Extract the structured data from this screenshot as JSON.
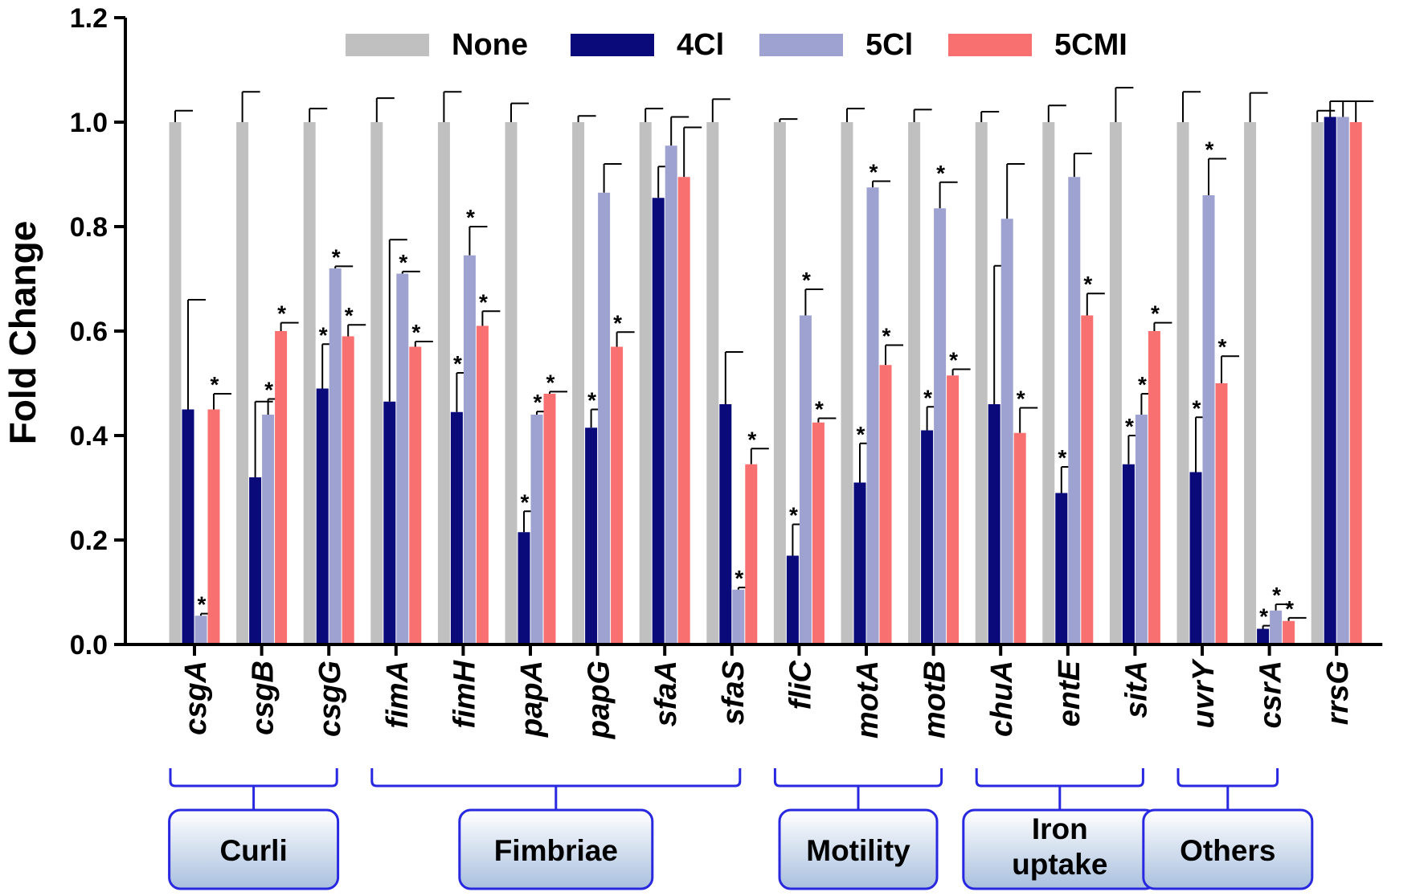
{
  "chart_data": {
    "type": "bar",
    "title": "",
    "xlabel": "",
    "ylabel": "Fold Change",
    "ylim": [
      0,
      1.2
    ],
    "yticks": [
      "0.0",
      "0.2",
      "0.4",
      "0.6",
      "0.8",
      "1.0",
      "1.2"
    ],
    "legend_position": "top",
    "categories": [
      "csgA",
      "csgB",
      "csgG",
      "fimA",
      "fimH",
      "papA",
      "papG",
      "sfaA",
      "sfaS",
      "fliC",
      "motA",
      "motB",
      "chuA",
      "entE",
      "sitA",
      "uvrY",
      "csrA",
      "rrsG"
    ],
    "series": [
      {
        "name": "None",
        "color": "#c0c0c0",
        "values": [
          1.0,
          1.0,
          1.0,
          1.0,
          1.0,
          1.0,
          1.0,
          1.0,
          1.0,
          1.0,
          1.0,
          1.0,
          1.0,
          1.0,
          1.0,
          1.0,
          1.0,
          1.0
        ],
        "errors": [
          0.022,
          0.058,
          0.026,
          0.046,
          0.058,
          0.036,
          0.012,
          0.026,
          0.044,
          0.006,
          0.026,
          0.024,
          0.02,
          0.032,
          0.066,
          0.058,
          0.056,
          0.022
        ],
        "significant": [
          false,
          false,
          false,
          false,
          false,
          false,
          false,
          false,
          false,
          false,
          false,
          false,
          false,
          false,
          false,
          false,
          false,
          false
        ]
      },
      {
        "name": "4Cl",
        "color": "#0a0a7a",
        "values": [
          0.45,
          0.32,
          0.49,
          0.465,
          0.445,
          0.215,
          0.415,
          0.855,
          0.46,
          0.17,
          0.31,
          0.41,
          0.46,
          0.29,
          0.345,
          0.33,
          0.03,
          1.01
        ],
        "errors": [
          0.21,
          0.145,
          0.085,
          0.31,
          0.075,
          0.04,
          0.035,
          0.06,
          0.1,
          0.06,
          0.075,
          0.045,
          0.265,
          0.05,
          0.055,
          0.105,
          0.006,
          0.03
        ],
        "significant": [
          false,
          false,
          true,
          false,
          true,
          true,
          true,
          false,
          false,
          true,
          true,
          true,
          false,
          true,
          true,
          true,
          true,
          false
        ]
      },
      {
        "name": "5Cl",
        "color": "#9ea2d0",
        "values": [
          0.055,
          0.44,
          0.72,
          0.71,
          0.745,
          0.44,
          0.865,
          0.955,
          0.105,
          0.63,
          0.875,
          0.835,
          0.815,
          0.895,
          0.44,
          0.86,
          0.065,
          1.01
        ],
        "errors": [
          0.004,
          0.03,
          0.004,
          0.004,
          0.055,
          0.006,
          0.055,
          0.055,
          0.004,
          0.05,
          0.012,
          0.05,
          0.105,
          0.045,
          0.04,
          0.07,
          0.012,
          0.03
        ],
        "significant": [
          true,
          true,
          true,
          true,
          true,
          true,
          false,
          false,
          true,
          true,
          true,
          true,
          false,
          false,
          true,
          true,
          true,
          false
        ]
      },
      {
        "name": "5CMI",
        "color": "#f87070",
        "values": [
          0.45,
          0.6,
          0.59,
          0.57,
          0.61,
          0.48,
          0.57,
          0.895,
          0.345,
          0.425,
          0.535,
          0.515,
          0.405,
          0.63,
          0.6,
          0.5,
          0.045,
          1.0
        ],
        "errors": [
          0.03,
          0.016,
          0.022,
          0.01,
          0.028,
          0.004,
          0.028,
          0.095,
          0.03,
          0.008,
          0.038,
          0.012,
          0.048,
          0.042,
          0.016,
          0.052,
          0.006,
          0.04
        ],
        "significant": [
          true,
          true,
          true,
          true,
          true,
          true,
          true,
          false,
          true,
          true,
          true,
          true,
          true,
          true,
          true,
          true,
          true,
          false
        ]
      }
    ],
    "significance_marker": "*",
    "groups": [
      {
        "label": "Curli",
        "from": 0,
        "to": 2
      },
      {
        "label": "Fimbriae",
        "from": 3,
        "to": 8
      },
      {
        "label": "Motility",
        "from": 9,
        "to": 11
      },
      {
        "label": "Iron uptake",
        "from": 12,
        "to": 14
      },
      {
        "label": "Others",
        "from": 15,
        "to": 16
      }
    ],
    "group_line_color": "#2828e0",
    "group_box_fill_top": "#ffffff",
    "group_box_fill_bottom": "#a9c0de"
  }
}
